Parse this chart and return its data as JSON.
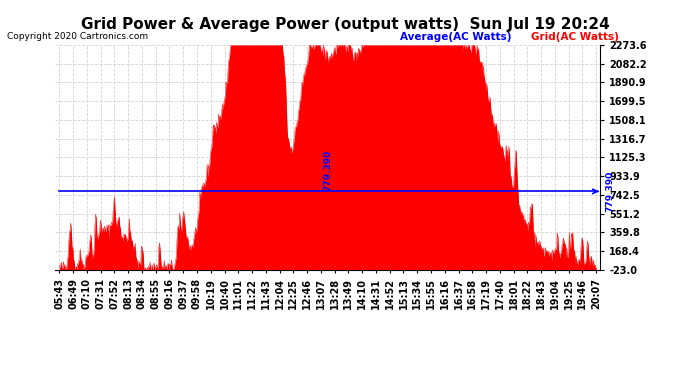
{
  "title": "Grid Power & Average Power (output watts)  Sun Jul 19 20:24",
  "copyright": "Copyright 2020 Cartronics.com",
  "legend_average": "Average(AC Watts)",
  "legend_grid": "Grid(AC Watts)",
  "average_value": 779.39,
  "ymin": -23.0,
  "ymax": 2273.6,
  "yticks": [
    2273.6,
    2082.2,
    1890.9,
    1699.5,
    1508.1,
    1316.7,
    1125.3,
    933.9,
    742.5,
    551.2,
    359.8,
    168.4,
    -23.0
  ],
  "fill_color": "red",
  "average_color": "blue",
  "background_color": "white",
  "title_color": "black",
  "copyright_color": "black",
  "xtick_labels": [
    "05:43",
    "06:49",
    "07:10",
    "07:31",
    "07:52",
    "08:13",
    "08:34",
    "08:55",
    "09:16",
    "09:37",
    "09:58",
    "10:19",
    "10:40",
    "11:01",
    "11:22",
    "11:43",
    "12:04",
    "12:25",
    "12:46",
    "13:07",
    "13:28",
    "13:49",
    "14:10",
    "14:31",
    "14:52",
    "15:13",
    "15:34",
    "15:55",
    "16:16",
    "16:37",
    "16:58",
    "17:19",
    "17:40",
    "18:01",
    "18:22",
    "18:43",
    "19:04",
    "19:25",
    "19:46",
    "20:07"
  ],
  "title_fontsize": 11,
  "tick_fontsize": 7
}
